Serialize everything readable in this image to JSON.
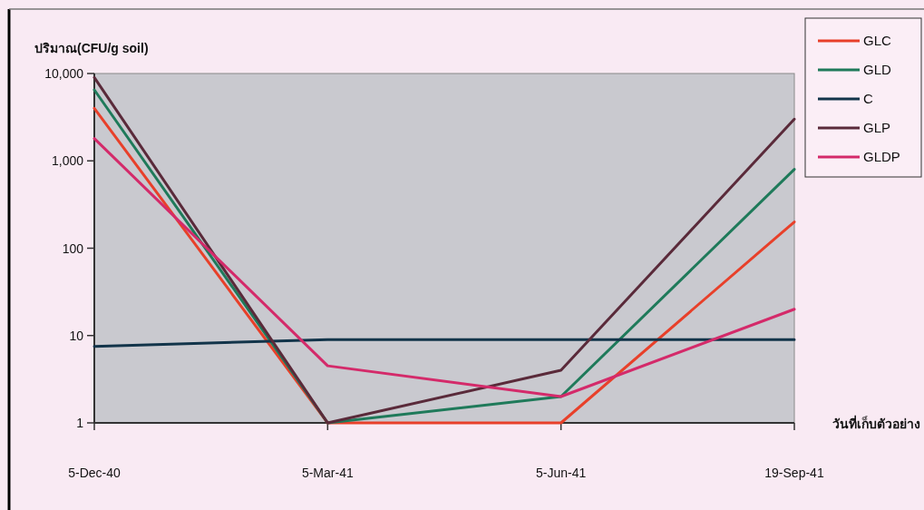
{
  "chart_data": {
    "type": "line",
    "ylabel": "ปริมาณ(CFU/g soil)",
    "xlabel": "วันที่เก็บตัวอย่าง",
    "categories": [
      "5-Dec-40",
      "5-Mar-41",
      "5-Jun-41",
      "19-Sep-41"
    ],
    "series": [
      {
        "name": "GLC",
        "color": "#e8402a",
        "values": [
          4000,
          1,
          1,
          200
        ]
      },
      {
        "name": "GLD",
        "color": "#1f7a5a",
        "values": [
          6500,
          1,
          2,
          800
        ]
      },
      {
        "name": "C",
        "color": "#12344a",
        "values": [
          7.5,
          9,
          9,
          9
        ]
      },
      {
        "name": "GLP",
        "color": "#5a2a3a",
        "values": [
          9000,
          1,
          4,
          3000
        ]
      },
      {
        "name": "GLDP",
        "color": "#d42a6a",
        "values": [
          1800,
          4.5,
          2,
          20
        ]
      }
    ],
    "log": true,
    "ylim": [
      1,
      10000
    ],
    "yticks": [
      1,
      10,
      100,
      {
        "value": 1000,
        "label": "1,000"
      },
      {
        "value": 10000,
        "label": "10,000"
      }
    ],
    "legend": "top right",
    "line_style": "solid"
  }
}
